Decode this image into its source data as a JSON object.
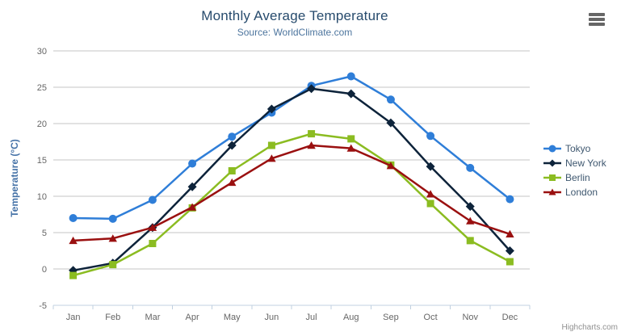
{
  "chart": {
    "credits": "Highcharts.com",
    "export_menu_icon": "hamburger-menu-icon"
  },
  "colors": {
    "title_text": "#274b6d",
    "subtitle_text": "#4d759e",
    "legend_text": "#3e576f",
    "credits_text": "#909090",
    "axis_label": "#666666",
    "axis_line": "#c0d0e0",
    "gridline": "#c6c6c6",
    "y_axis_title": "#4572a7"
  },
  "chart_data": {
    "type": "line",
    "title": "Monthly Average Temperature",
    "subtitle": "Source: WorldClimate.com",
    "categories": [
      "Jan",
      "Feb",
      "Mar",
      "Apr",
      "May",
      "Jun",
      "Jul",
      "Aug",
      "Sep",
      "Oct",
      "Nov",
      "Dec"
    ],
    "xlabel": "",
    "ylabel": "Temperature (°C)",
    "ylim": [
      -5,
      30
    ],
    "ytick_interval": 5,
    "grid": true,
    "legend_position": "right",
    "series": [
      {
        "name": "Tokyo",
        "color": "#2f7ed8",
        "marker": "circle",
        "values": [
          7.0,
          6.9,
          9.5,
          14.5,
          18.2,
          21.5,
          25.2,
          26.5,
          23.3,
          18.3,
          13.9,
          9.6
        ]
      },
      {
        "name": "New York",
        "color": "#0d233a",
        "marker": "diamond",
        "values": [
          -0.2,
          0.8,
          5.7,
          11.3,
          17.0,
          22.0,
          24.8,
          24.1,
          20.1,
          14.1,
          8.6,
          2.5
        ]
      },
      {
        "name": "Berlin",
        "color": "#8bbc21",
        "marker": "square",
        "values": [
          -0.9,
          0.6,
          3.5,
          8.4,
          13.5,
          17.0,
          18.6,
          17.9,
          14.3,
          9.0,
          3.9,
          1.0
        ]
      },
      {
        "name": "London",
        "color": "#9a1010",
        "marker": "triangle",
        "values": [
          3.9,
          4.2,
          5.7,
          8.5,
          11.9,
          15.2,
          17.0,
          16.6,
          14.2,
          10.3,
          6.6,
          4.8
        ]
      }
    ]
  }
}
